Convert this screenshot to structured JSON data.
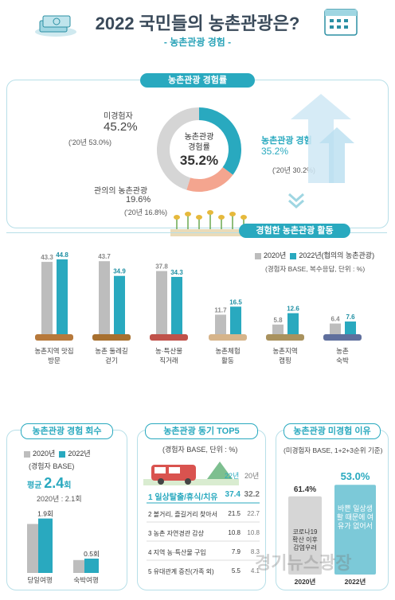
{
  "header": {
    "title": "2022 국민들의 농촌관광은?",
    "subtitle": "- 농촌관광 경험 -"
  },
  "experience_rate": {
    "pill": "농촌관광 경험률",
    "center_label_1": "농촌관광",
    "center_label_2": "경험률",
    "center_value": "35.2%",
    "non_label": "미경험자",
    "non_value": "45.2%",
    "non_prev": "('20년 53.0%)",
    "exp_label": "농촌관광 경험",
    "exp_value": "35.2%",
    "exp_prev": "('20년 30.2%)",
    "intent_label": "관의의 농촌관광",
    "intent_value": "19.6%",
    "intent_prev": "('20년 16.8%)",
    "activity_pill": "경험한 농촌관광 활동"
  },
  "activities": {
    "legend_2020": "2020년",
    "legend_2022": "2022년(협의의 농촌관광)",
    "note": "(경험자 BASE, 복수응답, 단위 : %)"
  },
  "count_panel": {
    "pill": "농촌관광 경험 회수",
    "legend_2020": "2020년",
    "legend_2022": "2022년",
    "base": "(경험자 BASE)",
    "avg_label": "평균",
    "avg_value": "2.4",
    "avg_unit": "회",
    "prev": "2020년 : 2.1회"
  },
  "motive_panel": {
    "pill": "농촌관광 동기 TOP5",
    "note": "(경험자 BASE, 단위 : %)",
    "col_22": "22년",
    "col_20": "20년",
    "rows": [
      {
        "label": "1 일상탈출/휴식/치유",
        "v22": "37.4",
        "v20": "32.2"
      },
      {
        "label": "2 볼거리, 즐길거리 찾아서",
        "v22": "21.5",
        "v20": "22.7"
      },
      {
        "label": "3 농촌 자연경관 감상",
        "v22": "10.8",
        "v20": "10.8"
      },
      {
        "label": "4 지역 농·특산물 구입",
        "v22": "7.9",
        "v20": "8.3"
      },
      {
        "label": "5 유대관계 증진(가족 외)",
        "v22": "5.5",
        "v20": "4.1"
      }
    ]
  },
  "reason_panel": {
    "pill": "농촌관광 미경험 이유",
    "note": "(미경험자 BASE, 1+2+3순위 기준)",
    "v2020": "61.4%",
    "v2022": "53.0%",
    "text2020": "코로나19 확산 이후 감염우려",
    "text2022": "바쁜 일상생활 때문에 여유가 없어서",
    "x2020": "2020년",
    "x2022": "2022년"
  },
  "watermark": "경기뉴스광장",
  "chart_data": [
    {
      "type": "bar",
      "title": "경험한 농촌관광 활동",
      "categories": [
        "농촌지역 맛집 방문",
        "농촌 둘레길 걷기",
        "농·특산물 직거래",
        "농촌체험 활동",
        "농촌지역 캠핑",
        "농촌 숙박"
      ],
      "series": [
        {
          "name": "2020년",
          "values": [
            43.3,
            43.7,
            37.8,
            11.7,
            5.8,
            6.4
          ]
        },
        {
          "name": "2022년(협의의 농촌관광)",
          "values": [
            44.8,
            34.9,
            34.3,
            16.5,
            12.6,
            7.6
          ]
        }
      ],
      "ylim": [
        0,
        50
      ]
    },
    {
      "type": "pie",
      "title": "농촌관광 경험률",
      "categories": [
        "농촌관광 경험",
        "관의의 농촌관광",
        "미경험자"
      ],
      "values": [
        35.2,
        19.6,
        45.2
      ]
    },
    {
      "type": "bar",
      "title": "농촌관광 경험 회수",
      "categories": [
        "당일여행",
        "숙박여행"
      ],
      "series": [
        {
          "name": "2022년",
          "values": [
            1.9,
            0.5
          ]
        }
      ],
      "ylim": [
        0,
        2.5
      ]
    },
    {
      "type": "bar",
      "title": "농촌관광 미경험 이유",
      "categories": [
        "2020년",
        "2022년"
      ],
      "values": [
        61.4,
        53.0
      ],
      "ylim": [
        0,
        70
      ]
    }
  ]
}
